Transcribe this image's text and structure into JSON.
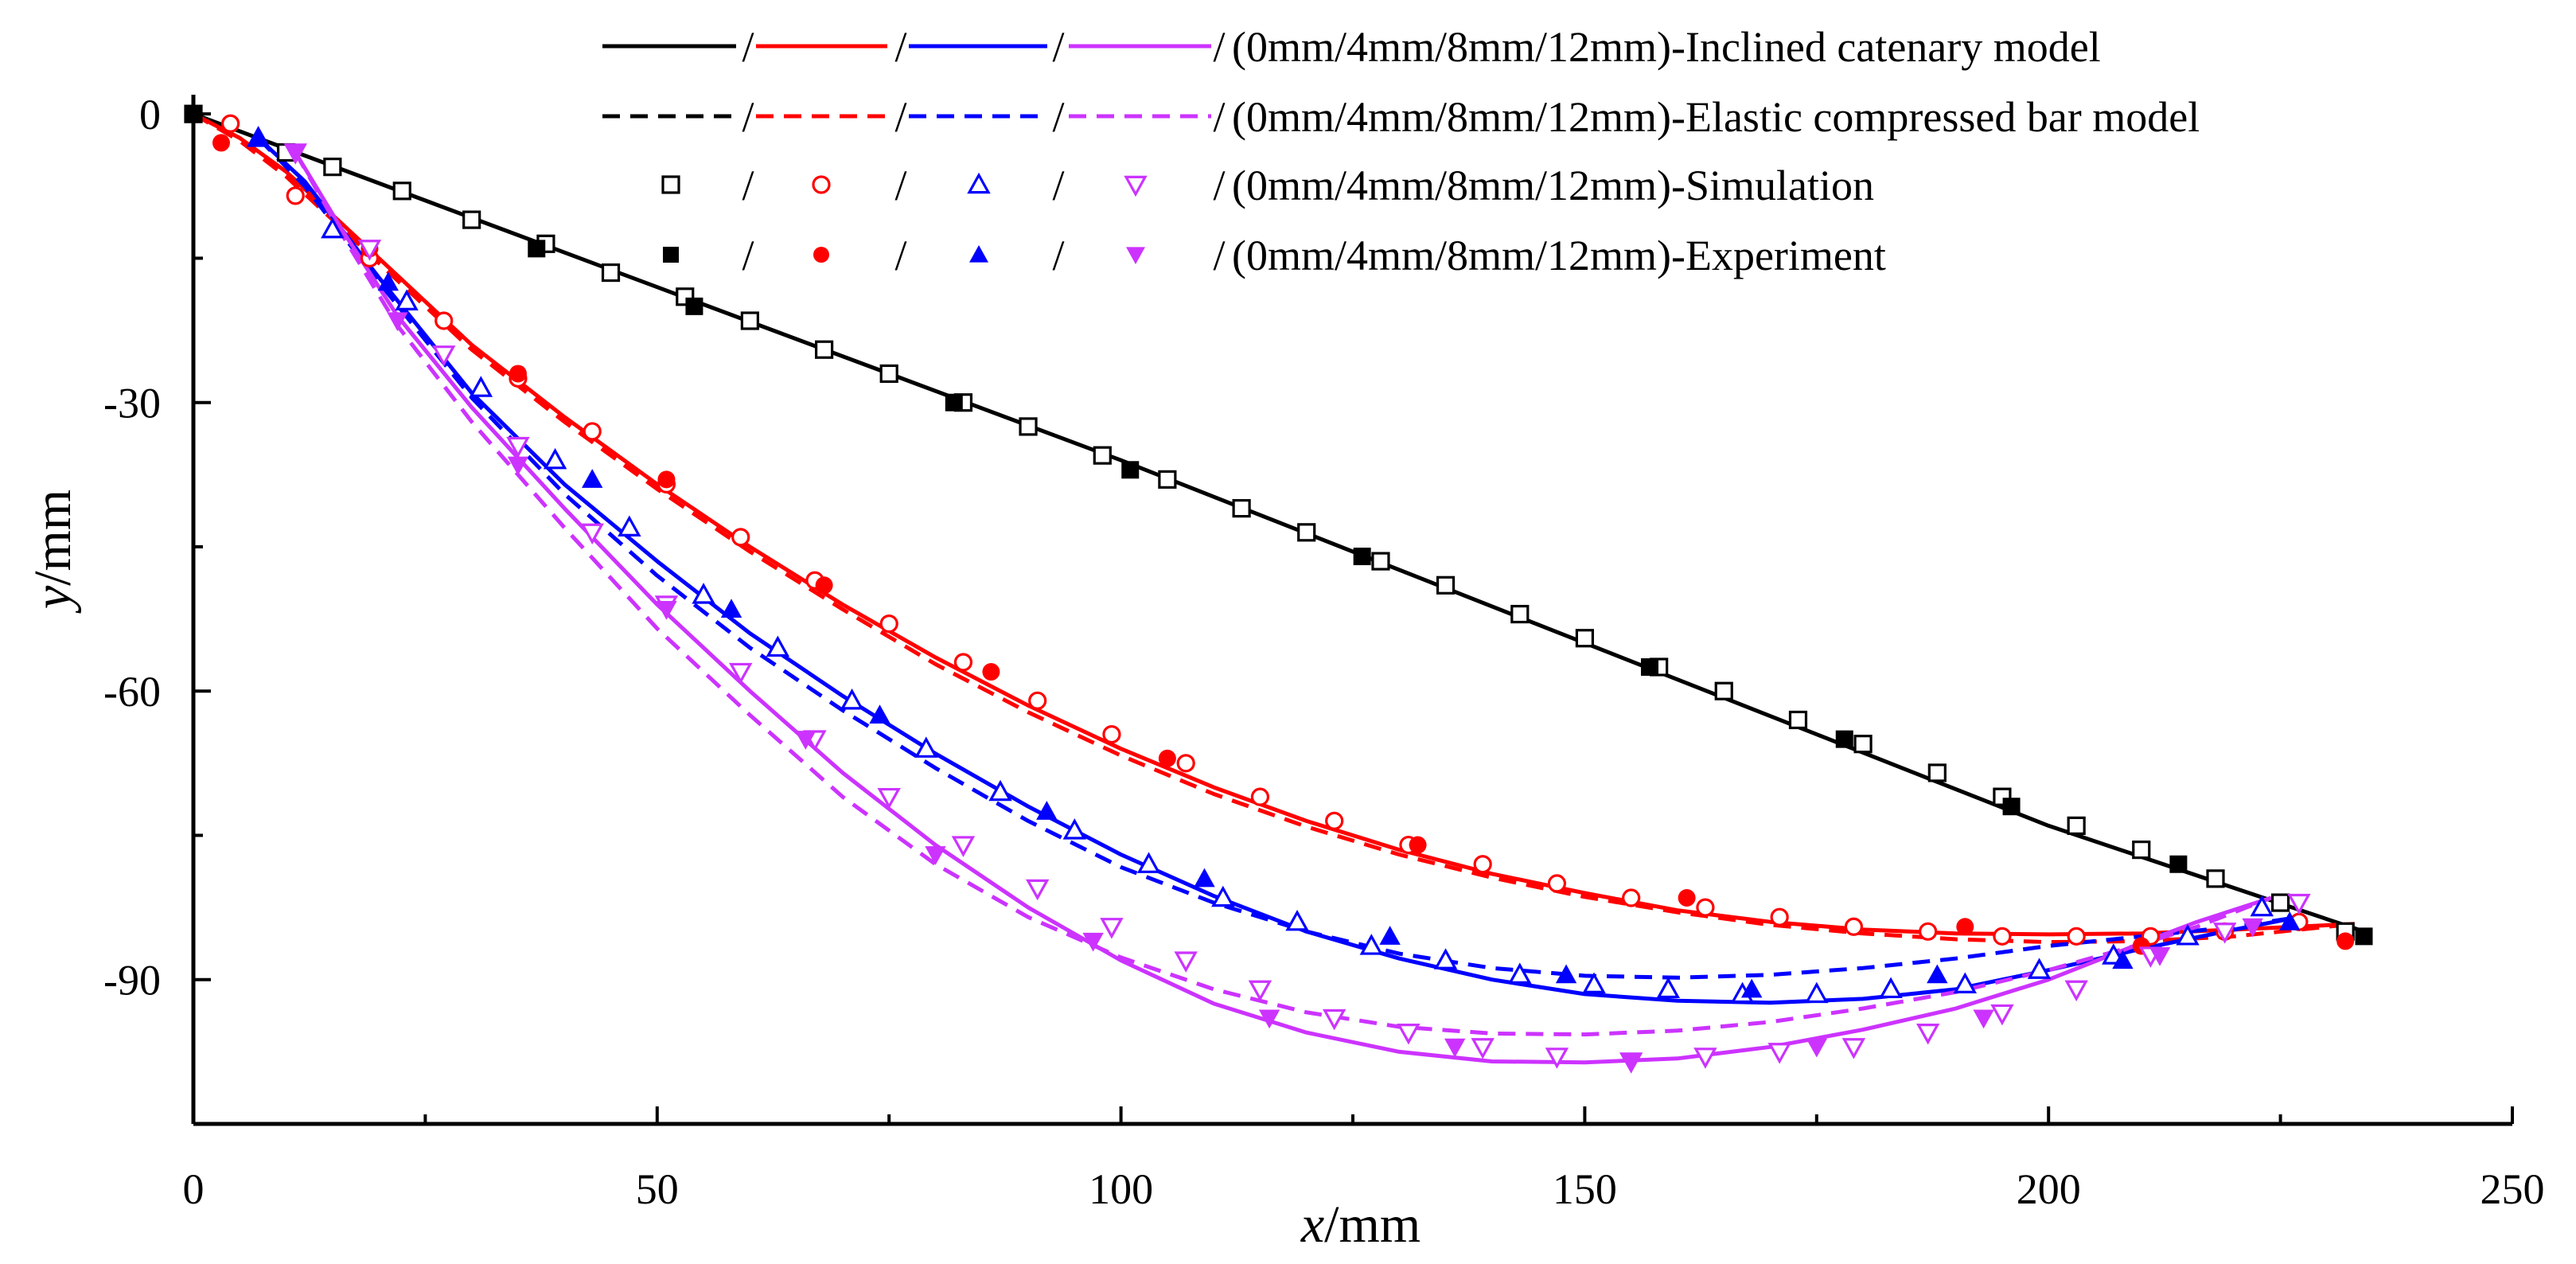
{
  "chart_data": {
    "type": "line",
    "title": "",
    "xlabel": {
      "var": "x",
      "unit": "/mm"
    },
    "ylabel": {
      "var": "y",
      "unit": "/mm"
    },
    "xlim": [
      0,
      250
    ],
    "ylim": [
      -105,
      2
    ],
    "xticks": [
      0,
      50,
      100,
      150,
      200,
      250
    ],
    "yticks": [
      0,
      -30,
      -60,
      -90
    ],
    "xtick_labels": [
      "0",
      "50",
      "100",
      "150",
      "200",
      "250"
    ],
    "ytick_labels": [
      "0",
      "-30",
      "-60",
      "-90"
    ],
    "grid": false,
    "legend_position": "top-right",
    "colors": {
      "0mm": "#000000",
      "4mm": "#ff0000",
      "8mm": "#0000ff",
      "12mm": "#cc33ff"
    },
    "legend": [
      {
        "style": "solid",
        "separator": "/",
        "label": "(0mm/4mm/8mm/12mm)-Inclined catenary model"
      },
      {
        "style": "dashed",
        "separator": "/",
        "label": "(0mm/4mm/8mm/12mm)-Elastic compressed bar model"
      },
      {
        "style": "open",
        "separator": "/",
        "label": "(0mm/4mm/8mm/12mm)-Simulation"
      },
      {
        "style": "filled",
        "separator": "/",
        "label": "(0mm/4mm/8mm/12mm)-Experiment"
      }
    ],
    "series": [
      {
        "name": "0mm-Inclined catenary model",
        "style": "solid",
        "color": "#000000",
        "x": [
          0,
          25,
          50,
          75,
          100,
          125,
          150,
          175,
          200,
          234
        ],
        "y": [
          0,
          -9,
          -18,
          -27,
          -36,
          -45.5,
          -55,
          -64.5,
          -74,
          -85
        ]
      },
      {
        "name": "4mm-Inclined catenary model",
        "style": "solid",
        "color": "#ff0000",
        "x": [
          0,
          5,
          10,
          20,
          30,
          40,
          50,
          60,
          70,
          80,
          90,
          100,
          110,
          120,
          130,
          140,
          150,
          160,
          170,
          180,
          190,
          200,
          210,
          220,
          233
        ],
        "y": [
          0,
          -2.5,
          -6,
          -15,
          -24,
          -31.5,
          -38.5,
          -45,
          -51,
          -56.5,
          -61.5,
          -66,
          -70,
          -73.5,
          -76.5,
          -79,
          -81,
          -82.8,
          -84,
          -84.8,
          -85.2,
          -85.3,
          -85.2,
          -84.8,
          -84.2
        ]
      },
      {
        "name": "4mm-Elastic compressed bar model",
        "style": "dashed",
        "color": "#ff0000",
        "x": [
          0,
          5,
          10,
          20,
          30,
          40,
          50,
          60,
          70,
          80,
          90,
          100,
          110,
          120,
          130,
          140,
          150,
          160,
          170,
          180,
          190,
          200,
          210,
          220,
          233
        ],
        "y": [
          0,
          -2.8,
          -6.5,
          -15.5,
          -24.5,
          -32,
          -39,
          -45.5,
          -51.5,
          -57.2,
          -62.2,
          -66.7,
          -70.7,
          -74.1,
          -77,
          -79.4,
          -81.4,
          -83,
          -84.3,
          -85.2,
          -85.8,
          -86.1,
          -86,
          -85.5,
          -84.2
        ]
      },
      {
        "name": "8mm-Inclined catenary model",
        "style": "solid",
        "color": "#0000ff",
        "x": [
          7,
          12,
          20,
          30,
          40,
          50,
          60,
          70,
          80,
          90,
          100,
          110,
          120,
          130,
          140,
          150,
          160,
          170,
          180,
          190,
          200,
          210,
          220,
          227
        ],
        "y": [
          -2.5,
          -7,
          -17,
          -29,
          -38.5,
          -46.5,
          -54,
          -60.5,
          -66.5,
          -72,
          -77,
          -81.3,
          -85,
          -87.8,
          -90,
          -91.5,
          -92.2,
          -92.4,
          -92,
          -91,
          -89,
          -86.8,
          -84.8,
          -83.5
        ]
      },
      {
        "name": "8mm-Elastic compressed bar model",
        "style": "dashed",
        "color": "#0000ff",
        "x": [
          7,
          12,
          20,
          30,
          40,
          50,
          60,
          70,
          80,
          90,
          100,
          110,
          120,
          130,
          140,
          150,
          160,
          170,
          180,
          190,
          200,
          210,
          220,
          227
        ],
        "y": [
          -2.5,
          -7.5,
          -17.5,
          -29.5,
          -39.5,
          -48,
          -55.5,
          -62,
          -68,
          -73.5,
          -78.3,
          -82,
          -85,
          -87.3,
          -88.8,
          -89.6,
          -89.8,
          -89.5,
          -88.8,
          -87.8,
          -86.5,
          -85.5,
          -84.5,
          -83.5
        ]
      },
      {
        "name": "12mm-Inclined catenary model",
        "style": "solid",
        "color": "#cc33ff",
        "x": [
          11,
          16,
          22,
          30,
          40,
          50,
          60,
          70,
          80,
          90,
          100,
          110,
          120,
          130,
          140,
          150,
          160,
          170,
          180,
          190,
          200,
          210,
          216,
          224
        ],
        "y": [
          -4,
          -12,
          -21,
          -30.5,
          -41,
          -51,
          -60,
          -68.5,
          -76,
          -82.5,
          -88,
          -92.5,
          -95.5,
          -97.5,
          -98.5,
          -98.6,
          -98.2,
          -97,
          -95.2,
          -93,
          -90,
          -86.2,
          -84,
          -81.5
        ]
      },
      {
        "name": "12mm-Elastic compressed bar model",
        "style": "dashed",
        "color": "#cc33ff",
        "x": [
          11,
          16,
          22,
          30,
          40,
          50,
          60,
          70,
          80,
          90,
          100,
          110,
          120,
          130,
          140,
          150,
          160,
          170,
          180,
          190,
          200,
          210,
          216,
          224
        ],
        "y": [
          -4,
          -12.5,
          -22,
          -32,
          -43,
          -53.5,
          -62.5,
          -71,
          -78,
          -83.5,
          -87.7,
          -91,
          -93.4,
          -94.9,
          -95.6,
          -95.7,
          -95.3,
          -94.4,
          -93,
          -91.3,
          -89,
          -86.3,
          -84.5,
          -81.5
        ]
      },
      {
        "name": "0mm-Simulation",
        "style": "open",
        "marker": "square",
        "color": "#000000",
        "x": [
          0,
          10,
          15,
          22.5,
          30,
          38,
          45,
          53,
          60,
          68,
          75,
          83,
          90,
          98,
          105,
          113,
          120,
          128,
          135,
          143,
          150,
          158,
          165,
          173,
          180,
          188,
          195,
          203,
          210,
          218,
          225,
          232
        ],
        "y": [
          0,
          -4,
          -5.5,
          -8,
          -11,
          -13.5,
          -16.5,
          -19,
          -21.5,
          -24.5,
          -27,
          -30,
          -32.5,
          -35.5,
          -38,
          -41,
          -43.5,
          -46.5,
          -49,
          -52,
          -54.5,
          -57.5,
          -60,
          -63,
          -65.5,
          -68.5,
          -71,
          -74,
          -76.5,
          -79.5,
          -82,
          -85
        ]
      },
      {
        "name": "0mm-Experiment",
        "style": "filled",
        "marker": "square",
        "color": "#000000",
        "x": [
          0,
          37,
          54,
          82,
          101,
          126,
          157,
          178,
          196,
          214,
          234
        ],
        "y": [
          0,
          -14,
          -20,
          -30,
          -37,
          -46,
          -57.5,
          -65,
          -72,
          -78,
          -85.5
        ]
      },
      {
        "name": "4mm-Simulation",
        "style": "open",
        "marker": "circle",
        "color": "#ff0000",
        "x": [
          4,
          11,
          19,
          27,
          35,
          43,
          51,
          59,
          67,
          75,
          83,
          91,
          99,
          107,
          115,
          123,
          131,
          139,
          147,
          155,
          163,
          171,
          179,
          187,
          195,
          203,
          211,
          219,
          227
        ],
        "y": [
          -1,
          -8.5,
          -15,
          -21.5,
          -27.5,
          -33,
          -38.5,
          -44,
          -48.5,
          -53,
          -57,
          -61,
          -64.5,
          -67.5,
          -71,
          -73.5,
          -76,
          -78,
          -80,
          -81.5,
          -82.5,
          -83.5,
          -84.5,
          -85,
          -85.5,
          -85.5,
          -85.5,
          -85,
          -84
        ]
      },
      {
        "name": "4mm-Experiment",
        "style": "filled",
        "marker": "circle",
        "color": "#ff0000",
        "x": [
          3,
          19,
          35,
          51,
          68,
          86,
          105,
          132,
          161,
          191,
          210,
          232
        ],
        "y": [
          -3,
          -14,
          -27,
          -38,
          -49,
          -58,
          -67,
          -76,
          -81.5,
          -84.5,
          -86.5,
          -86
        ]
      },
      {
        "name": "8mm-Simulation",
        "style": "open",
        "marker": "triangle-up",
        "color": "#0000ff",
        "x": [
          7,
          15,
          23,
          31,
          39,
          47,
          55,
          63,
          71,
          79,
          87,
          95,
          103,
          111,
          119,
          127,
          135,
          143,
          151,
          159,
          167,
          175,
          183,
          191,
          199,
          207,
          215,
          223
        ],
        "y": [
          -2.5,
          -12,
          -19.5,
          -28.5,
          -36,
          -43,
          -50,
          -55.5,
          -61,
          -66,
          -70.5,
          -74.5,
          -78,
          -81.5,
          -84,
          -86.5,
          -88,
          -89.5,
          -90.5,
          -91,
          -91.5,
          -91.5,
          -91,
          -90.5,
          -89,
          -87.5,
          -85.5,
          -82.5
        ]
      },
      {
        "name": "8mm-Experiment",
        "style": "filled",
        "marker": "triangle-up",
        "color": "#0000ff",
        "x": [
          7,
          21,
          43,
          58,
          74,
          92,
          109,
          129,
          148,
          168,
          188,
          208,
          226
        ],
        "y": [
          -2.5,
          -17.5,
          -38,
          -51.5,
          -62.5,
          -72.5,
          -79.5,
          -85.5,
          -89.5,
          -91,
          -89.5,
          -88,
          -84
        ]
      },
      {
        "name": "12mm-Simulation",
        "style": "open",
        "marker": "triangle-down",
        "color": "#cc33ff",
        "x": [
          11,
          19,
          27,
          35,
          43,
          51,
          59,
          67,
          75,
          83,
          91,
          99,
          107,
          115,
          123,
          131,
          139,
          147,
          155,
          163,
          171,
          179,
          187,
          195,
          203,
          211,
          219,
          227
        ],
        "y": [
          -4,
          -14,
          -25,
          -34.5,
          -43.5,
          -51,
          -58,
          -65,
          -71,
          -76,
          -80.5,
          -84.5,
          -88,
          -91,
          -94,
          -95.5,
          -97,
          -98,
          -98.5,
          -98,
          -97.5,
          -97,
          -95.5,
          -93.5,
          -91,
          -87.5,
          -85,
          -82
        ]
      },
      {
        "name": "12mm-Experiment",
        "style": "filled",
        "marker": "triangle-down",
        "color": "#cc33ff",
        "x": [
          11,
          22,
          35,
          51,
          66,
          80,
          97,
          116,
          136,
          155,
          175,
          193,
          212,
          222
        ],
        "y": [
          -4,
          -21.5,
          -36.5,
          -51.5,
          -65,
          -77,
          -86,
          -94,
          -97,
          -98.5,
          -97,
          -94,
          -87.5,
          -84.5
        ]
      }
    ]
  }
}
